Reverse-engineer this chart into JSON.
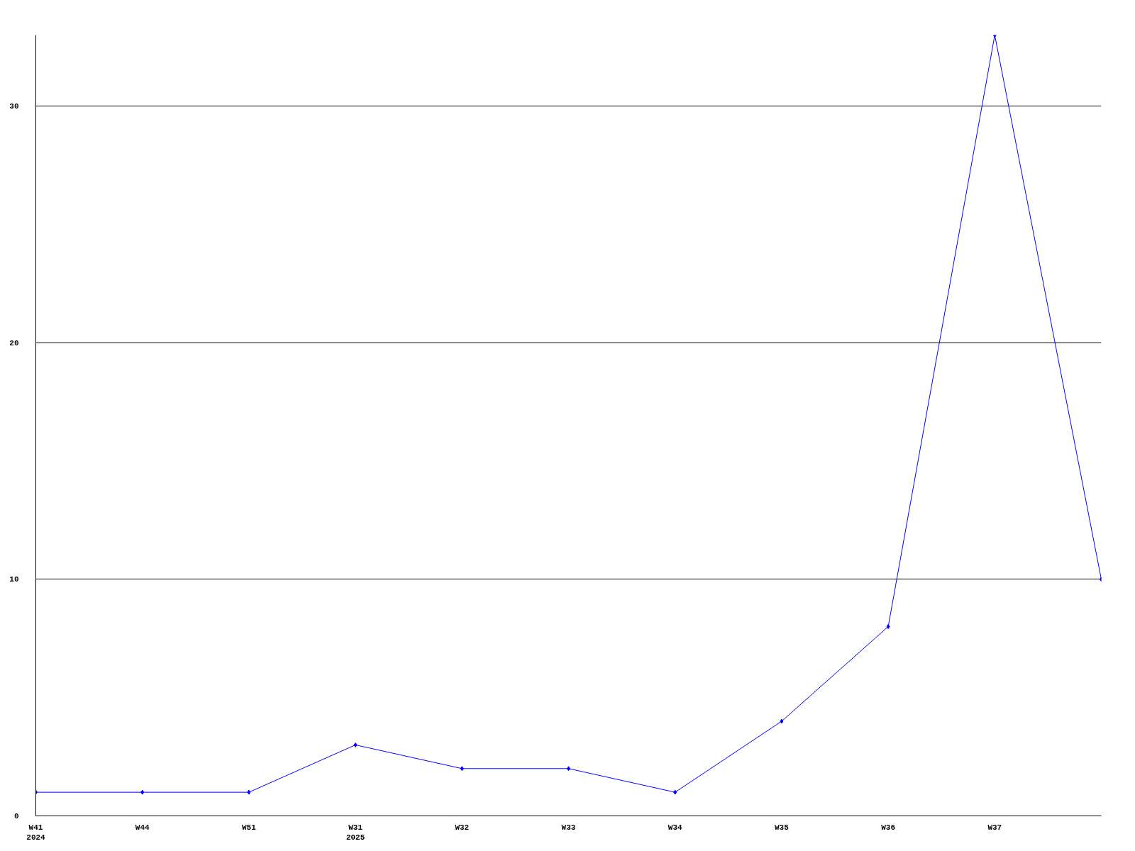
{
  "chart_data": {
    "type": "line",
    "categories": [
      "W41\n2024",
      "W44",
      "W51",
      "W31\n2025",
      "W32",
      "W33",
      "W34",
      "W35",
      "W36",
      "W37",
      null
    ],
    "series": [
      {
        "color": "#0000ff",
        "values": [
          1,
          1,
          1,
          3,
          2,
          2,
          1,
          4,
          8,
          33,
          10
        ]
      }
    ],
    "ylim": [
      0,
      33
    ],
    "yticks": [
      0,
      10,
      20,
      30
    ],
    "grid": "y",
    "marker": "diamond",
    "line_style": "solid"
  }
}
